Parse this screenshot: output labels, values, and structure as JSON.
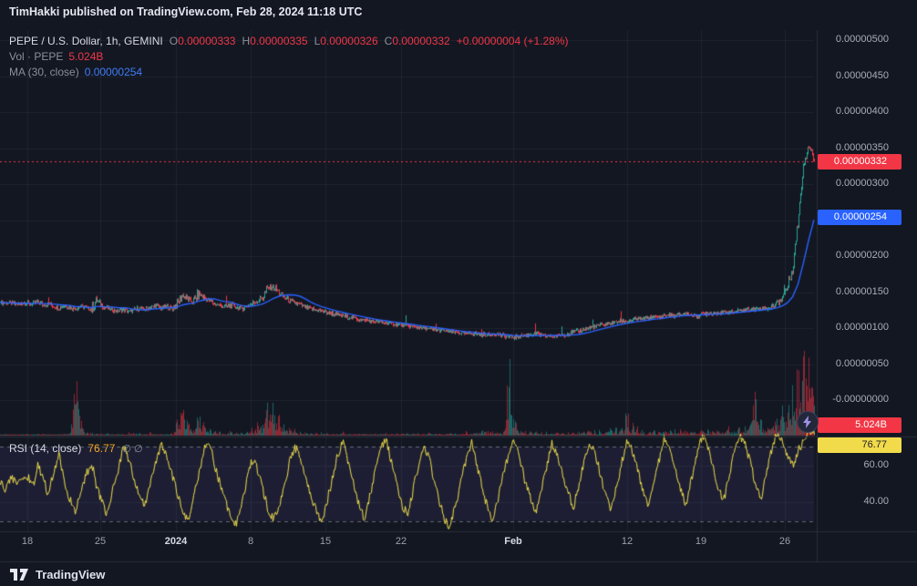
{
  "header": {
    "publish_line": "TimHakki published on TradingView.com, Feb 28, 2024 11:18 UTC"
  },
  "legend": {
    "symbol": "PEPE / U.S. Dollar, 1h, GEMINI",
    "open_key": "O",
    "open": "0.00000333",
    "high_key": "H",
    "high": "0.00000335",
    "low_key": "L",
    "low": "0.00000326",
    "close_key": "C",
    "close": "0.00000332",
    "change": "+0.00000004 (+1.28%)",
    "volume_label": "Vol · PEPE",
    "volume_value": "5.024B",
    "ma_label": "MA (30, close)",
    "ma_value": "0.00000254"
  },
  "rsi_legend": {
    "label": "RSI (14, close)",
    "value": "76.77",
    "empty_markers": "∅ ∅"
  },
  "axes": {
    "price_ticks": [
      {
        "label": "0.00000500",
        "v": 500
      },
      {
        "label": "0.00000450",
        "v": 450
      },
      {
        "label": "0.00000400",
        "v": 400
      },
      {
        "label": "0.00000350",
        "v": 350
      },
      {
        "label": "0.00000300",
        "v": 300
      },
      {
        "label": "0.00000200",
        "v": 200
      },
      {
        "label": "0.00000150",
        "v": 150
      },
      {
        "label": "0.00000100",
        "v": 100
      },
      {
        "label": "0.00000050",
        "v": 50
      },
      {
        "label": "-0.00000000",
        "v": 0
      }
    ],
    "rsi_ticks": [
      {
        "label": "60.00",
        "v": 60
      },
      {
        "label": "40.00",
        "v": 40
      }
    ],
    "time_ticks": [
      {
        "label": "18",
        "pos": 0.034,
        "bold": false
      },
      {
        "label": "25",
        "pos": 0.123,
        "bold": false
      },
      {
        "label": "2024",
        "pos": 0.216,
        "bold": true
      },
      {
        "label": "8",
        "pos": 0.308,
        "bold": false
      },
      {
        "label": "15",
        "pos": 0.4,
        "bold": false
      },
      {
        "label": "22",
        "pos": 0.493,
        "bold": false
      },
      {
        "label": "Feb",
        "pos": 0.63,
        "bold": true
      },
      {
        "label": "12",
        "pos": 0.77,
        "bold": false
      },
      {
        "label": "19",
        "pos": 0.861,
        "bold": false
      },
      {
        "label": "26",
        "pos": 0.964,
        "bold": false
      }
    ]
  },
  "badges": {
    "last_price": {
      "label": "0.00000332",
      "v_e8": 332,
      "bg": "#f23645",
      "fg": "#ffffff"
    },
    "ma": {
      "label": "0.00000254",
      "v_e8": 254,
      "bg": "#2962ff",
      "fg": "#ffffff"
    },
    "volume": {
      "label": "5.024B",
      "bg": "#f23645",
      "fg": "#ffffff"
    },
    "rsi": {
      "label": "76.77",
      "v": 76.77,
      "bg": "#f2db4b",
      "fg": "#1c1f27"
    }
  },
  "footer": {
    "brand": "TradingView"
  },
  "colors": {
    "up": "#26a69a",
    "down": "#f23645",
    "ma": "#2962ff",
    "rsi_line": "#f2e14c",
    "grid": "rgba(135,145,170,0.10)",
    "separator": "#2a2e39",
    "rsi_band": "rgba(120,100,210,0.10)"
  },
  "chart_data": [
    {
      "type": "line",
      "render_style": "candlestick-approximation",
      "title": "PEPE / U.S. Dollar, 1h, GEMINI",
      "x_range": [
        "Dec 15 2023",
        "Feb 28 2024 11:00 UTC"
      ],
      "sample_interval": "12h",
      "unit": "1e-8 USD",
      "ylim_e8": [
        0,
        500
      ],
      "close_e8": [
        136,
        134,
        135,
        133,
        134,
        135,
        133,
        136,
        132,
        134,
        130,
        128,
        131,
        129,
        127,
        130,
        128,
        126,
        138,
        131,
        127,
        125,
        124,
        126,
        123,
        125,
        128,
        126,
        129,
        131,
        128,
        130,
        127,
        133,
        146,
        140,
        136,
        148,
        142,
        138,
        134,
        131,
        129,
        132,
        129,
        127,
        131,
        134,
        138,
        143,
        155,
        158,
        149,
        143,
        138,
        135,
        132,
        129,
        127,
        125,
        124,
        122,
        120,
        118,
        117,
        115,
        114,
        112,
        111,
        110,
        109,
        108,
        107,
        106,
        105,
        104,
        103,
        102,
        101,
        100,
        99,
        98,
        97,
        96,
        95,
        94,
        93,
        92,
        93,
        92,
        91,
        90,
        92,
        91,
        89,
        88,
        87,
        89,
        90,
        91,
        92,
        90,
        89,
        88,
        89,
        90,
        92,
        94,
        96,
        98,
        100,
        102,
        104,
        105,
        107,
        108,
        110,
        109,
        111,
        113,
        112,
        114,
        116,
        115,
        117,
        118,
        117,
        119,
        120,
        118,
        117,
        119,
        121,
        120,
        122,
        121,
        123,
        122,
        124,
        125,
        127,
        126,
        128,
        127,
        129,
        134,
        142,
        158,
        185,
        250,
        330,
        356,
        332
      ],
      "last_bar": {
        "open": "0.00000333",
        "high": "0.00000335",
        "low": "0.00000326",
        "close": "0.00000332",
        "change": "+0.00000004 (+1.28%)"
      },
      "overlays": [
        {
          "name": "MA (30, close)",
          "type": "sma",
          "window_points": 7,
          "last": "0.00000254",
          "color": "#2962ff"
        }
      ]
    },
    {
      "type": "bar",
      "title": "Volume PEPE (billions)",
      "ymax_B": 45,
      "last": "5.024B",
      "values_B": [
        0.6,
        0.7,
        0.5,
        0.8,
        0.6,
        0.8,
        0.5,
        0.7,
        0.6,
        0.9,
        0.5,
        0.6,
        0.8,
        0.9,
        42,
        8,
        2.5,
        1.2,
        0.9,
        0.8,
        0.9,
        0.7,
        0.6,
        0.8,
        1.0,
        1.2,
        0.9,
        0.8,
        1.1,
        0.9,
        0.7,
        0.8,
        1.0,
        5,
        12,
        6,
        3,
        10,
        5,
        3,
        2,
        1.5,
        1.2,
        1.8,
        1.4,
        1.0,
        1.6,
        2.5,
        4,
        6,
        14,
        12,
        7,
        4,
        3,
        2,
        1.5,
        1.2,
        1.0,
        0.9,
        1.1,
        1.0,
        0.9,
        0.8,
        1.2,
        0.9,
        0.8,
        0.7,
        0.9,
        0.8,
        0.7,
        0.9,
        0.8,
        0.7,
        0.8,
        0.9,
        0.8,
        1.0,
        0.9,
        0.8,
        1.2,
        1.0,
        0.9,
        1.1,
        1.0,
        0.9,
        1.2,
        1.4,
        1.3,
        1.5,
        2,
        2.5,
        1.8,
        1.4,
        1.2,
        40,
        8,
        3,
        2,
        1.5,
        1.8,
        1.4,
        1.2,
        1.0,
        1.2,
        0.9,
        1.1,
        1.3,
        1.5,
        1.8,
        2.2,
        2.0,
        2.5,
        2.2,
        2.8,
        3.0,
        3.5,
        12,
        5,
        3,
        2.5,
        2,
        2.2,
        1.8,
        2.0,
        2.4,
        2.1,
        1.9,
        2.3,
        2.0,
        1.8,
        2.2,
        2.6,
        2.1,
        2.5,
        2.3,
        2.8,
        2.4,
        3.0,
        3.5,
        4,
        25,
        6,
        4,
        5,
        8,
        10,
        14,
        18,
        30,
        45,
        38,
        25
      ]
    },
    {
      "type": "line",
      "title": "RSI (14, close)",
      "ylim": [
        0,
        100
      ],
      "bands": {
        "upper": 70,
        "lower": 30
      },
      "last": 76.77,
      "values": [
        52,
        47,
        55,
        50,
        53,
        55,
        48,
        60,
        52,
        44,
        58,
        66,
        50,
        42,
        34,
        46,
        55,
        62,
        48,
        40,
        33,
        47,
        58,
        70,
        63,
        52,
        44,
        38,
        50,
        61,
        72,
        66,
        55,
        45,
        37,
        30,
        42,
        55,
        68,
        74,
        60,
        50,
        40,
        32,
        28,
        40,
        52,
        63,
        58,
        47,
        36,
        30,
        38,
        50,
        62,
        70,
        65,
        54,
        43,
        35,
        29,
        41,
        53,
        66,
        73,
        61,
        49,
        38,
        31,
        44,
        57,
        69,
        75,
        62,
        50,
        39,
        33,
        46,
        59,
        71,
        64,
        52,
        40,
        30,
        27,
        39,
        51,
        64,
        72,
        60,
        48,
        36,
        30,
        43,
        56,
        68,
        74,
        63,
        51,
        42,
        34,
        47,
        60,
        72,
        66,
        54,
        45,
        37,
        49,
        62,
        73,
        67,
        56,
        44,
        36,
        48,
        61,
        74,
        68,
        57,
        46,
        38,
        50,
        63,
        75,
        70,
        58,
        47,
        39,
        52,
        65,
        76,
        71,
        60,
        48,
        40,
        53,
        66,
        77,
        72,
        62,
        50,
        42,
        55,
        68,
        78,
        73,
        65,
        60,
        68,
        74,
        79,
        76.77
      ]
    }
  ]
}
